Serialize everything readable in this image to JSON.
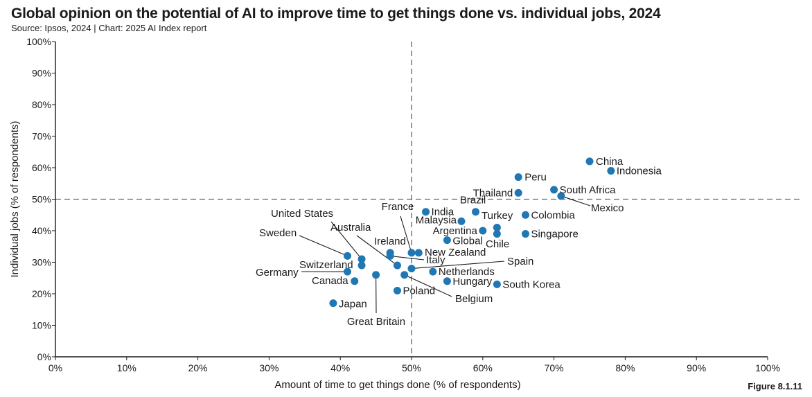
{
  "title": "Global opinion on the potential of AI to improve time to get things done vs. individual jobs, 2024",
  "source": "Source: Ipsos, 2024 | Chart: 2025 AI Index report",
  "figure_label": "Figure 8.1.11",
  "chart_data": {
    "type": "scatter",
    "xlabel": "Amount of time to get things done (% of respondents)",
    "ylabel": "Individual jobs (% of respondents)",
    "xlim": [
      0,
      100
    ],
    "ylim": [
      0,
      100
    ],
    "x_ticks": [
      "0%",
      "10%",
      "20%",
      "30%",
      "40%",
      "50%",
      "60%",
      "70%",
      "80%",
      "90%",
      "100%"
    ],
    "y_ticks": [
      "0%",
      "10%",
      "20%",
      "30%",
      "40%",
      "50%",
      "60%",
      "70%",
      "80%",
      "90%",
      "100%"
    ],
    "reference_lines": {
      "x": 50,
      "y": 50
    },
    "grid": false,
    "point_color": "#1f77b4",
    "points": [
      {
        "label": "China",
        "x": 75,
        "y": 62
      },
      {
        "label": "Indonesia",
        "x": 78,
        "y": 59
      },
      {
        "label": "Peru",
        "x": 65,
        "y": 57
      },
      {
        "label": "Thailand",
        "x": 65,
        "y": 52
      },
      {
        "label": "South Africa",
        "x": 70,
        "y": 53
      },
      {
        "label": "Mexico",
        "x": 71,
        "y": 51
      },
      {
        "label": "Brazil",
        "x": 59,
        "y": 46
      },
      {
        "label": "India",
        "x": 52,
        "y": 46
      },
      {
        "label": "France",
        "x": 50,
        "y": 33
      },
      {
        "label": "Turkey",
        "x": 62,
        "y": 41
      },
      {
        "label": "Colombia",
        "x": 66,
        "y": 45
      },
      {
        "label": "Malaysia",
        "x": 57,
        "y": 43
      },
      {
        "label": "Argentina",
        "x": 60,
        "y": 40
      },
      {
        "label": "Singapore",
        "x": 66,
        "y": 39
      },
      {
        "label": "Chile",
        "x": 62,
        "y": 39
      },
      {
        "label": "Global",
        "x": 55,
        "y": 37
      },
      {
        "label": "New Zealand",
        "x": 51,
        "y": 33
      },
      {
        "label": "Ireland",
        "x": 47,
        "y": 33
      },
      {
        "label": "Italy",
        "x": 47,
        "y": 32
      },
      {
        "label": "Australia",
        "x": 48,
        "y": 29
      },
      {
        "label": "Spain",
        "x": 50,
        "y": 28
      },
      {
        "label": "Netherlands",
        "x": 53,
        "y": 27
      },
      {
        "label": "Belgium",
        "x": 49,
        "y": 26
      },
      {
        "label": "Hungary",
        "x": 55,
        "y": 24
      },
      {
        "label": "South Korea",
        "x": 62,
        "y": 23
      },
      {
        "label": "Poland",
        "x": 48,
        "y": 21
      },
      {
        "label": "United States",
        "x": 43,
        "y": 31
      },
      {
        "label": "Sweden",
        "x": 41,
        "y": 32
      },
      {
        "label": "Switzerland",
        "x": 43,
        "y": 29
      },
      {
        "label": "Germany",
        "x": 41,
        "y": 27
      },
      {
        "label": "Canada",
        "x": 42,
        "y": 24
      },
      {
        "label": "Great Britain",
        "x": 45,
        "y": 26
      },
      {
        "label": "Japan",
        "x": 39,
        "y": 17
      }
    ]
  }
}
